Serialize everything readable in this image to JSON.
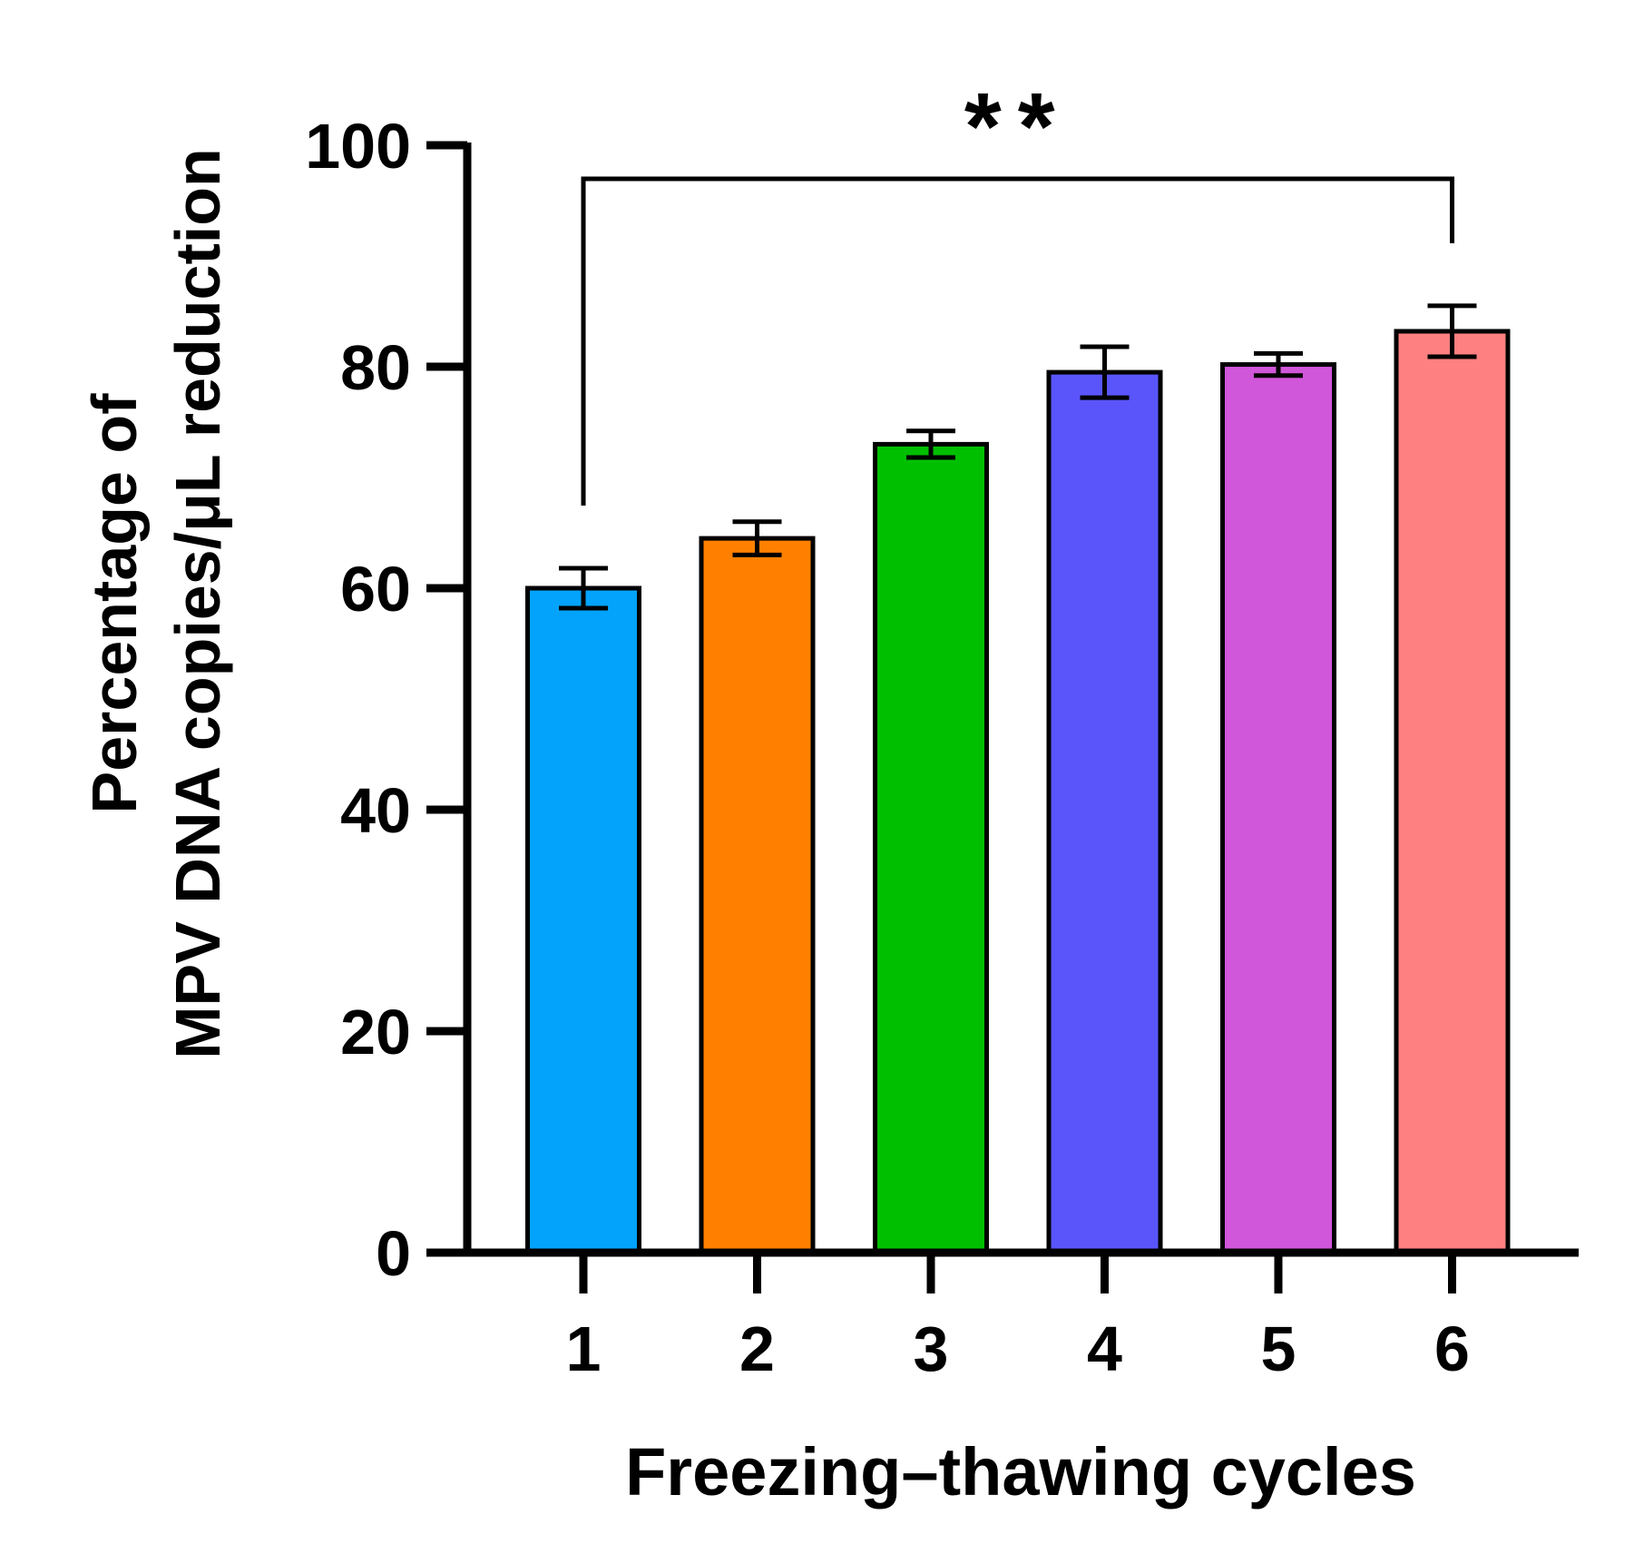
{
  "chart_data": {
    "type": "bar",
    "title": "",
    "xlabel": "Freezing–thawing cycles",
    "ylabel_lines": [
      "Percentage of",
      "MPV DNA copies/μL reduction"
    ],
    "categories": [
      "1",
      "2",
      "3",
      "4",
      "5",
      "6"
    ],
    "values": [
      60,
      64.5,
      73,
      79.5,
      80.2,
      83.2
    ],
    "errors": [
      1.8,
      1.5,
      1.2,
      2.3,
      1.0,
      2.3
    ],
    "colors": [
      "#03A3FC",
      "#FF8000",
      "#00BF00",
      "#5A55FB",
      "#D056DA",
      "#FF8080"
    ],
    "ylim": [
      0,
      100
    ],
    "yticks": [
      0,
      20,
      40,
      60,
      80,
      100
    ],
    "grid": false,
    "legend": "none",
    "significance": {
      "from": "1",
      "to": "6",
      "label": "**"
    }
  }
}
